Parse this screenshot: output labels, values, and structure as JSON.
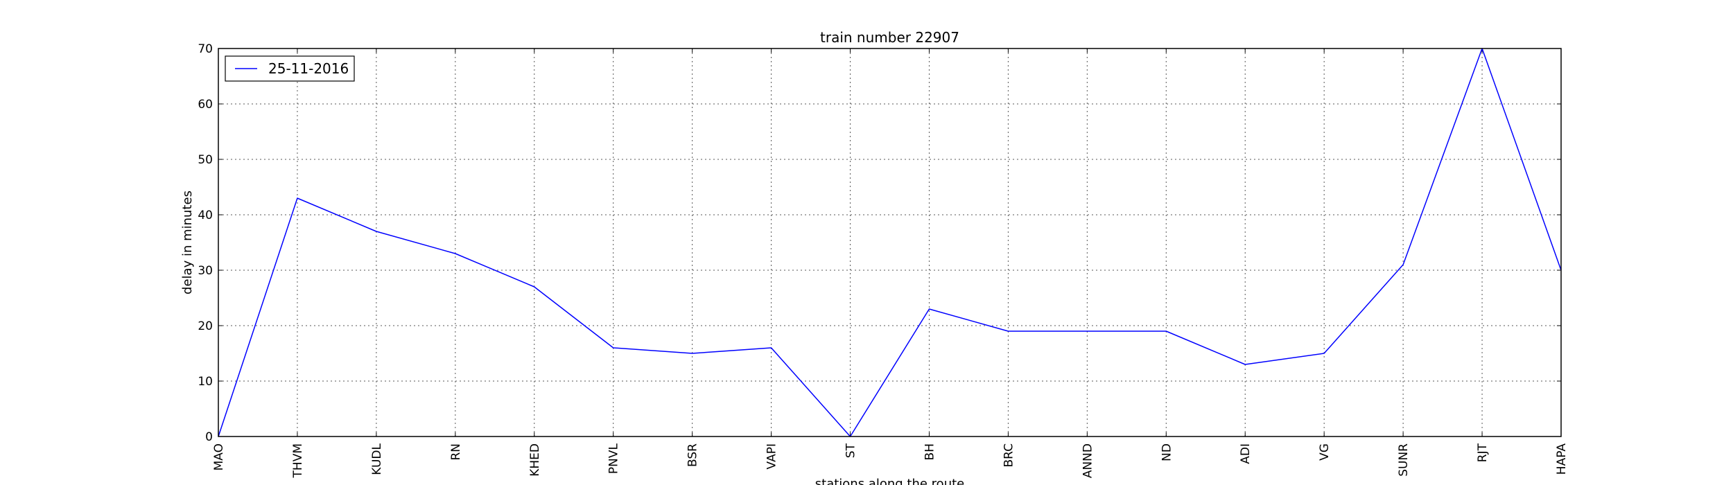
{
  "chart_data": {
    "type": "line",
    "title": "train number 22907",
    "xlabel": "stations along the route",
    "ylabel": "delay in minutes",
    "categories": [
      "MAO",
      "THVM",
      "KUDL",
      "RN",
      "KHED",
      "PNVL",
      "BSR",
      "VAPI",
      "ST",
      "BH",
      "BRC",
      "ANND",
      "ND",
      "ADI",
      "VG",
      "SUNR",
      "RJT",
      "HAPA"
    ],
    "series": [
      {
        "name": "25-11-2016",
        "color": "#0000ff",
        "values": [
          0,
          43,
          37,
          33,
          27,
          16,
          15,
          16,
          0,
          23,
          19,
          19,
          19,
          13,
          15,
          31,
          70,
          30
        ]
      }
    ],
    "ylim": [
      0,
      70
    ],
    "yticks": [
      0,
      10,
      20,
      30,
      40,
      50,
      60,
      70
    ],
    "grid": true,
    "legend_position": "top-left"
  }
}
